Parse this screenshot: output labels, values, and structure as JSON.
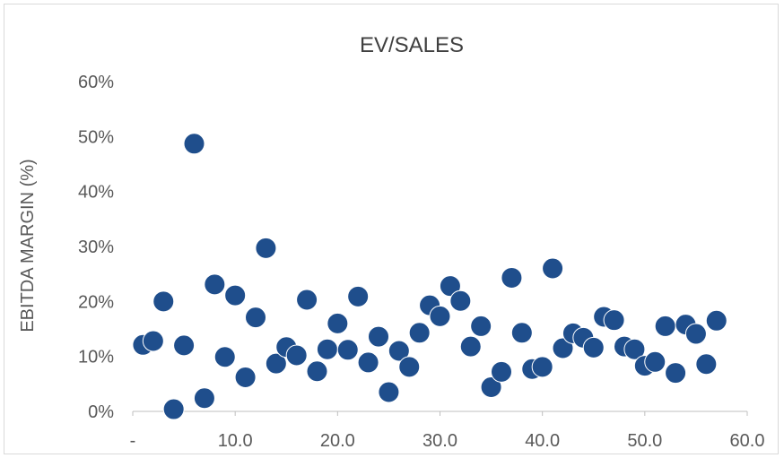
{
  "chart_data": {
    "type": "scatter",
    "title": "EV/SALES",
    "xlabel": "",
    "ylabel": "EBITDA MARGIN (%)",
    "xlim": [
      0,
      60
    ],
    "ylim": [
      0,
      0.6
    ],
    "x_ticks": [
      "-",
      "10.0",
      "20.0",
      "30.0",
      "40.0",
      "50.0",
      "60.0"
    ],
    "y_ticks": [
      "0%",
      "10%",
      "20%",
      "30%",
      "40%",
      "50%",
      "60%"
    ],
    "grid": false,
    "legend": "none",
    "marker_color": "#1f4e8c",
    "points": [
      {
        "x": 1.0,
        "y": 0.121
      },
      {
        "x": 2.0,
        "y": 0.128
      },
      {
        "x": 3.0,
        "y": 0.2
      },
      {
        "x": 4.0,
        "y": 0.004
      },
      {
        "x": 5.0,
        "y": 0.12
      },
      {
        "x": 6.0,
        "y": 0.487
      },
      {
        "x": 7.0,
        "y": 0.024
      },
      {
        "x": 8.0,
        "y": 0.231
      },
      {
        "x": 9.0,
        "y": 0.099
      },
      {
        "x": 10.0,
        "y": 0.211
      },
      {
        "x": 11.0,
        "y": 0.062
      },
      {
        "x": 12.0,
        "y": 0.171
      },
      {
        "x": 13.0,
        "y": 0.297
      },
      {
        "x": 14.0,
        "y": 0.087
      },
      {
        "x": 15.0,
        "y": 0.117
      },
      {
        "x": 16.0,
        "y": 0.102
      },
      {
        "x": 17.0,
        "y": 0.203
      },
      {
        "x": 18.0,
        "y": 0.073
      },
      {
        "x": 19.0,
        "y": 0.113
      },
      {
        "x": 20.0,
        "y": 0.16
      },
      {
        "x": 21.0,
        "y": 0.112
      },
      {
        "x": 22.0,
        "y": 0.209
      },
      {
        "x": 23.0,
        "y": 0.089
      },
      {
        "x": 24.0,
        "y": 0.136
      },
      {
        "x": 25.0,
        "y": 0.035
      },
      {
        "x": 26.0,
        "y": 0.11
      },
      {
        "x": 27.0,
        "y": 0.081
      },
      {
        "x": 28.0,
        "y": 0.143
      },
      {
        "x": 29.0,
        "y": 0.193
      },
      {
        "x": 30.0,
        "y": 0.173
      },
      {
        "x": 31.0,
        "y": 0.228
      },
      {
        "x": 32.0,
        "y": 0.201
      },
      {
        "x": 33.0,
        "y": 0.118
      },
      {
        "x": 34.0,
        "y": 0.155
      },
      {
        "x": 35.0,
        "y": 0.044
      },
      {
        "x": 36.0,
        "y": 0.072
      },
      {
        "x": 37.0,
        "y": 0.243
      },
      {
        "x": 38.0,
        "y": 0.143
      },
      {
        "x": 39.0,
        "y": 0.077
      },
      {
        "x": 40.0,
        "y": 0.081
      },
      {
        "x": 41.0,
        "y": 0.26
      },
      {
        "x": 42.0,
        "y": 0.115
      },
      {
        "x": 43.0,
        "y": 0.142
      },
      {
        "x": 44.0,
        "y": 0.134
      },
      {
        "x": 45.0,
        "y": 0.116
      },
      {
        "x": 46.0,
        "y": 0.172
      },
      {
        "x": 47.0,
        "y": 0.166
      },
      {
        "x": 48.0,
        "y": 0.118
      },
      {
        "x": 49.0,
        "y": 0.113
      },
      {
        "x": 50.0,
        "y": 0.083
      },
      {
        "x": 51.0,
        "y": 0.09
      },
      {
        "x": 52.0,
        "y": 0.155
      },
      {
        "x": 53.0,
        "y": 0.07
      },
      {
        "x": 54.0,
        "y": 0.158
      },
      {
        "x": 55.0,
        "y": 0.141
      },
      {
        "x": 56.0,
        "y": 0.086
      },
      {
        "x": 57.0,
        "y": 0.165
      }
    ]
  }
}
